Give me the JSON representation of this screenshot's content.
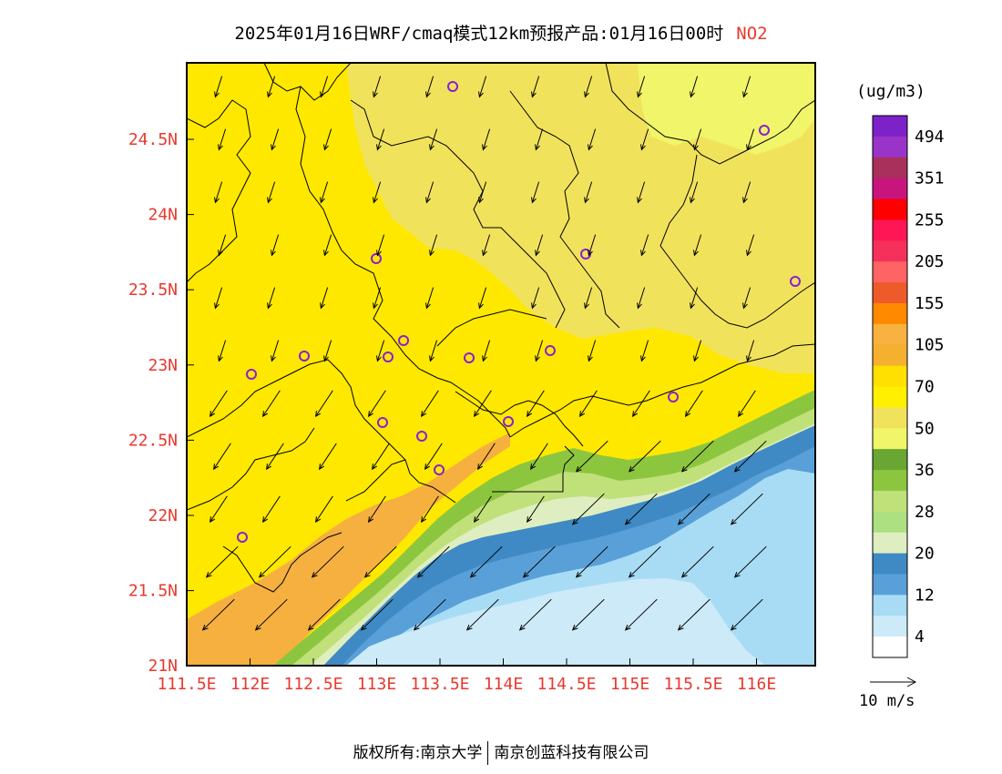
{
  "title": {
    "text": "2025年01月16日WRF/cmaq模式12km预报产品:01月16日00时",
    "species": "NO2"
  },
  "units": "(ug/m3)",
  "y_axis": {
    "ticks": [
      "24.5N",
      "24N",
      "23.5N",
      "23N",
      "22.5N",
      "22N",
      "21.5N",
      "21N"
    ]
  },
  "x_axis": {
    "ticks": [
      "111.5E",
      "112E",
      "112.5E",
      "113E",
      "113.5E",
      "114E",
      "114.5E",
      "115E",
      "115.5E",
      "116E"
    ]
  },
  "colorbar": {
    "labels": [
      "494",
      "351",
      "255",
      "205",
      "155",
      "105",
      "70",
      "50",
      "36",
      "28",
      "20",
      "12",
      "4"
    ],
    "colors": [
      "#7d22c9",
      "#9a33c8",
      "#a8305a",
      "#c8157e",
      "#ff0000",
      "#ff1654",
      "#f5305a",
      "#ff6464",
      "#ef5a2a",
      "#ff8a00",
      "#f9b140",
      "#f5b030",
      "#ffe000",
      "#fff000",
      "#f1e25c",
      "#f0f56a",
      "#6aa632",
      "#8cc63f",
      "#c0e07a",
      "#ade080",
      "#dfeec0",
      "#3f8ac4",
      "#5aa0d8",
      "#a8dcf5",
      "#cdeaf8",
      "#ffffff"
    ]
  },
  "wind_reference": {
    "label": "10 m/s"
  },
  "footer": {
    "left": "版权所有:南京大学",
    "right": "南京创蓝科技有限公司"
  }
}
